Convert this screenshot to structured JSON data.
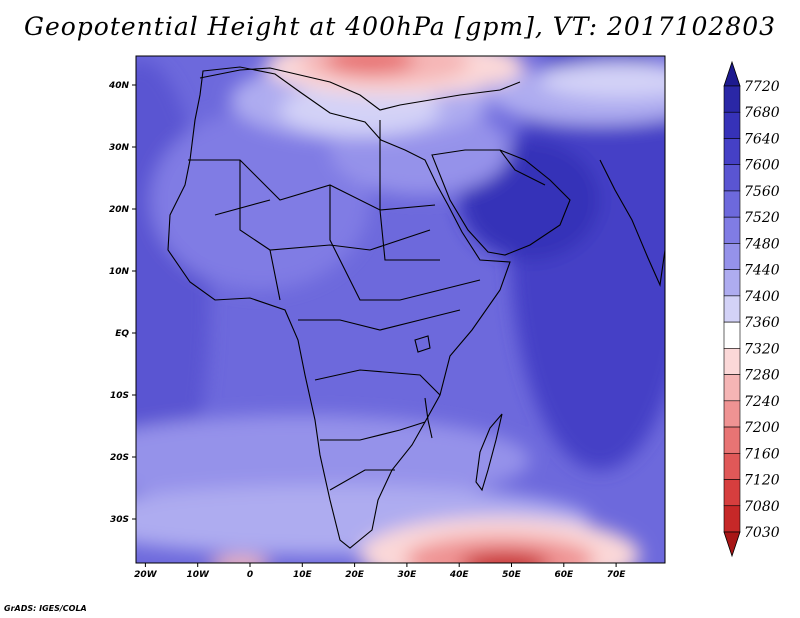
{
  "title": "Geopotential Height at 400hPa [gpm], VT: 2017102803",
  "credit": "GrADS: IGES/COLA",
  "map": {
    "lat_ticks": [
      {
        "lat": 40,
        "label": "40N"
      },
      {
        "lat": 30,
        "label": "30N"
      },
      {
        "lat": 20,
        "label": "20N"
      },
      {
        "lat": 10,
        "label": "10N"
      },
      {
        "lat": 0,
        "label": "EQ"
      },
      {
        "lat": -10,
        "label": "10S"
      },
      {
        "lat": -20,
        "label": "20S"
      },
      {
        "lat": -30,
        "label": "30S"
      }
    ],
    "lon_ticks": [
      {
        "lon": -20,
        "label": "20W"
      },
      {
        "lon": -10,
        "label": "10W"
      },
      {
        "lon": 0,
        "label": "0"
      },
      {
        "lon": 10,
        "label": "10E"
      },
      {
        "lon": 20,
        "label": "20E"
      },
      {
        "lon": 30,
        "label": "30E"
      },
      {
        "lon": 40,
        "label": "40E"
      },
      {
        "lon": 50,
        "label": "50E"
      },
      {
        "lon": 60,
        "label": "60E"
      },
      {
        "lon": 70,
        "label": "70E"
      }
    ]
  },
  "colorbar": {
    "labels": [
      "7720",
      "7680",
      "7640",
      "7600",
      "7560",
      "7520",
      "7480",
      "7440",
      "7400",
      "7360",
      "7320",
      "7280",
      "7240",
      "7200",
      "7160",
      "7120",
      "7080",
      "7030"
    ],
    "colors": [
      "#1d1a8f",
      "#2a27a6",
      "#3632b8",
      "#4540c6",
      "#5a55d2",
      "#6d69dc",
      "#807ce4",
      "#9592ea",
      "#aeacf0",
      "#d3d2f7",
      "#ffffff",
      "#fbd8d8",
      "#f5b5b5",
      "#ef9393",
      "#e87474",
      "#e05858",
      "#d63e3e",
      "#c62828",
      "#a81616"
    ]
  }
}
